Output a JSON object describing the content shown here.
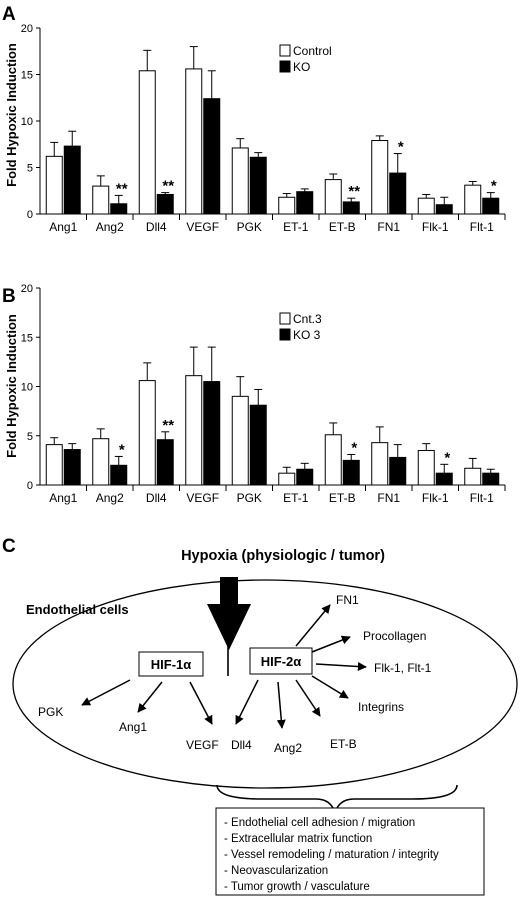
{
  "panels": {
    "a": {
      "letter": "A"
    },
    "b": {
      "letter": "B"
    },
    "c": {
      "letter": "C"
    }
  },
  "chart_data": [
    {
      "type": "bar",
      "ylabel": "Fold Hypoxic Induction",
      "ylim": [
        0,
        20
      ],
      "yticks": [
        0,
        5,
        10,
        15,
        20
      ],
      "legend_position": "top-right",
      "categories": [
        "Ang1",
        "Ang2",
        "Dll4",
        "VEGF",
        "PGK",
        "ET-1",
        "ET-B",
        "FN1",
        "Flk-1",
        "Flt-1"
      ],
      "series": [
        {
          "name": "Control",
          "color": "#ffffff",
          "values": [
            6.2,
            3.0,
            15.4,
            15.6,
            7.1,
            1.8,
            3.7,
            7.9,
            1.7,
            3.1
          ],
          "errors": [
            1.5,
            1.1,
            2.2,
            2.4,
            1.0,
            0.4,
            0.6,
            0.5,
            0.4,
            0.4
          ]
        },
        {
          "name": "KO",
          "color": "#000000",
          "values": [
            7.3,
            1.1,
            2.1,
            12.4,
            6.1,
            2.4,
            1.3,
            4.4,
            1.0,
            1.7
          ],
          "errors": [
            1.6,
            0.9,
            0.2,
            3.0,
            0.5,
            0.3,
            0.4,
            2.1,
            0.8,
            0.6
          ]
        }
      ],
      "significance": [
        "",
        "**",
        "**",
        "",
        "",
        "",
        "**",
        "*",
        "",
        "*"
      ]
    },
    {
      "type": "bar",
      "ylabel": "Fold Hypoxic Induction",
      "ylim": [
        0,
        20
      ],
      "yticks": [
        0,
        5,
        10,
        15,
        20
      ],
      "legend_position": "top-right",
      "categories": [
        "Ang1",
        "Ang2",
        "Dll4",
        "VEGF",
        "PGK",
        "ET-1",
        "ET-B",
        "FN1",
        "Flk-1",
        "Flt-1"
      ],
      "series": [
        {
          "name": "Cnt.3",
          "color": "#ffffff",
          "values": [
            4.1,
            4.7,
            10.6,
            11.1,
            9.0,
            1.2,
            5.1,
            4.3,
            3.5,
            1.7
          ],
          "errors": [
            0.7,
            1.0,
            1.8,
            2.9,
            2.0,
            0.6,
            1.2,
            1.6,
            0.7,
            1.0
          ]
        },
        {
          "name": "KO 3",
          "color": "#000000",
          "values": [
            3.6,
            2.0,
            4.6,
            10.5,
            8.1,
            1.6,
            2.5,
            2.8,
            1.2,
            1.2
          ],
          "errors": [
            0.6,
            0.9,
            0.8,
            3.5,
            1.6,
            0.6,
            0.6,
            1.3,
            0.9,
            0.4
          ]
        }
      ],
      "significance": [
        "",
        "*",
        "**",
        "",
        "",
        "",
        "*",
        "",
        "*",
        ""
      ]
    }
  ],
  "diagram": {
    "title": "Hypoxia (physiologic / tumor)",
    "compartment": "Endothelial cells",
    "hif1": "HIF-1α",
    "hif2": "HIF-2α",
    "targets": {
      "pgk": "PGK",
      "ang1": "Ang1",
      "vegf": "VEGF",
      "dll4": "Dll4",
      "ang2": "Ang2",
      "etb": "ET-B",
      "integrins": "Integrins",
      "flk": "Flk-1, Flt-1",
      "procollagen": "Procollagen",
      "fn1": "FN1"
    },
    "functions": [
      "- Endothelial cell adhesion / migration",
      "- Extracellular matrix function",
      "- Vessel remodeling / maturation / integrity",
      "- Neovascularization",
      "- Tumor growth / vasculature"
    ]
  }
}
